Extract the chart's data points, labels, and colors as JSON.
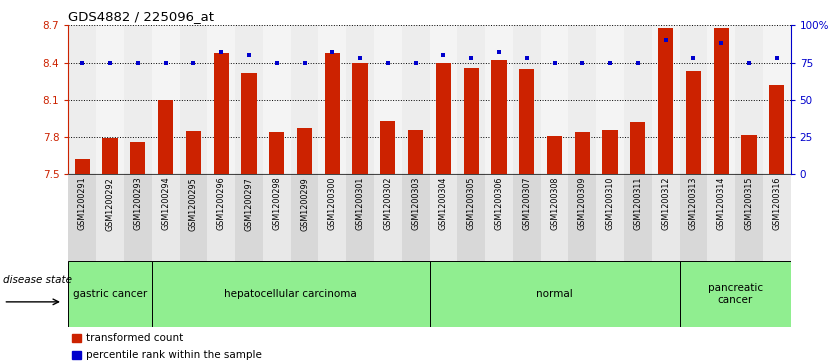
{
  "title": "GDS4882 / 225096_at",
  "samples": [
    "GSM1200291",
    "GSM1200292",
    "GSM1200293",
    "GSM1200294",
    "GSM1200295",
    "GSM1200296",
    "GSM1200297",
    "GSM1200298",
    "GSM1200299",
    "GSM1200300",
    "GSM1200301",
    "GSM1200302",
    "GSM1200303",
    "GSM1200304",
    "GSM1200305",
    "GSM1200306",
    "GSM1200307",
    "GSM1200308",
    "GSM1200309",
    "GSM1200310",
    "GSM1200311",
    "GSM1200312",
    "GSM1200313",
    "GSM1200314",
    "GSM1200315",
    "GSM1200316"
  ],
  "bar_values": [
    7.62,
    7.79,
    7.76,
    8.1,
    7.85,
    8.48,
    8.32,
    7.84,
    7.87,
    8.48,
    8.4,
    7.93,
    7.86,
    8.4,
    8.36,
    8.42,
    8.35,
    7.81,
    7.84,
    7.86,
    7.92,
    8.68,
    8.33,
    8.68,
    7.82,
    8.22
  ],
  "percentile_values": [
    75,
    75,
    75,
    75,
    75,
    82,
    80,
    75,
    75,
    82,
    78,
    75,
    75,
    80,
    78,
    82,
    78,
    75,
    75,
    75,
    75,
    90,
    78,
    88,
    75,
    78
  ],
  "groups": [
    {
      "label": "gastric cancer",
      "start": 0,
      "end": 2
    },
    {
      "label": "hepatocellular carcinoma",
      "start": 3,
      "end": 12
    },
    {
      "label": "normal",
      "start": 13,
      "end": 21
    },
    {
      "label": "pancreatic\ncancer",
      "start": 22,
      "end": 25
    }
  ],
  "ylim_left": [
    7.5,
    8.7
  ],
  "ylim_right": [
    0,
    100
  ],
  "bar_color": "#CC2200",
  "dot_color": "#0000CC",
  "bg_color": "#FFFFFF",
  "label_color_left": "#CC2200",
  "label_color_right": "#0000CC",
  "yticks_left": [
    7.5,
    7.8,
    8.1,
    8.4,
    8.7
  ],
  "yticks_right": [
    0,
    25,
    50,
    75,
    100
  ],
  "disease_state_label": "disease state",
  "group_color": "#90EE90",
  "col_bg_even": "#D8D8D8",
  "col_bg_odd": "#E8E8E8"
}
